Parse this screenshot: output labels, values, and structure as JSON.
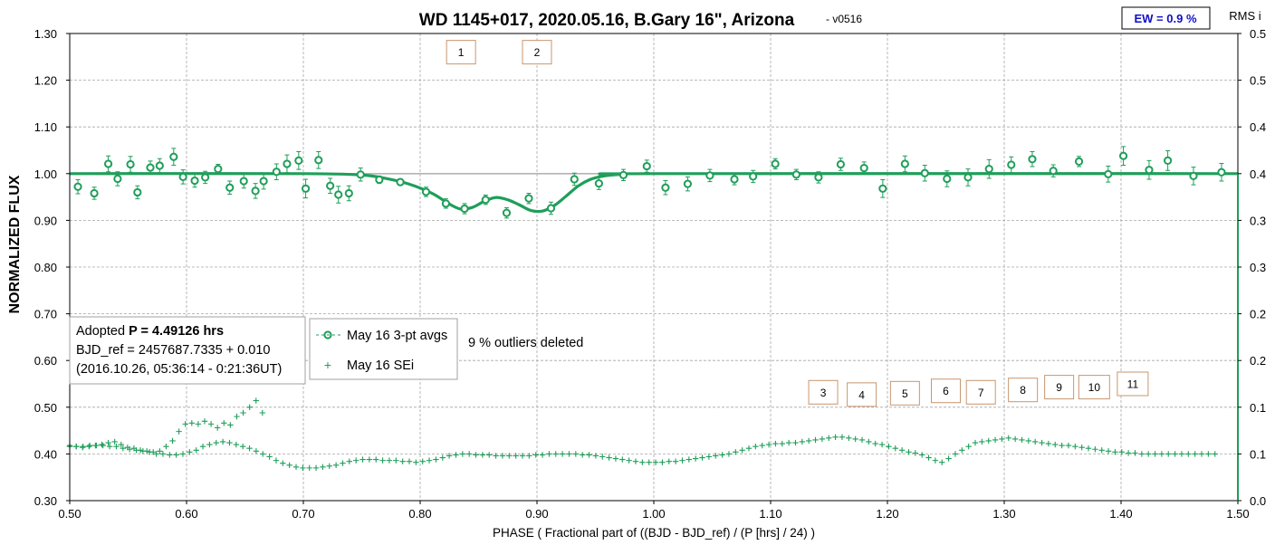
{
  "chart_data": {
    "type": "scatter",
    "title": "WD 1145+017, 2020.05.16, B.Gary 16\", Arizona",
    "subtitle": "-  v0516",
    "xlabel": "PHASE ( Fractional part of ((BJD - BJD_ref) / (P [hrs] / 24) )",
    "ylabel": "NORMALIZED FLUX",
    "y2label": "RMS i",
    "xlim": [
      0.5,
      1.5
    ],
    "ylim": [
      0.3,
      1.3
    ],
    "y2lim": [
      0.0,
      0.5
    ],
    "x_ticks": [
      "0.50",
      "0.60",
      "0.70",
      "0.80",
      "0.90",
      "1.00",
      "1.10",
      "1.20",
      "1.30",
      "1.40",
      "1.50"
    ],
    "y_ticks": [
      "0.30",
      "0.40",
      "0.50",
      "0.60",
      "0.70",
      "0.80",
      "0.90",
      "1.00",
      "1.10",
      "1.20",
      "1.30"
    ],
    "y2_ticks": [
      "0.0",
      "0.1",
      "0.1",
      "0.2",
      "0.2",
      "0.3",
      "0.3",
      "0.4",
      "0.4",
      "0.5",
      "0.5"
    ],
    "grid": true,
    "ew_label": "EW = 0.9 %",
    "info_box": {
      "line1_prefix": "Adopted ",
      "line1_bold": "P = 4.49126 hrs",
      "line2": "BJD_ref = 2457687.7335 + 0.010",
      "line3": "(2016.10.26, 05:36:14 - 0:21:36UT)"
    },
    "legend": {
      "placement": "center-left",
      "entries": [
        "May 16 3-pt avgs",
        "May 16 SEi"
      ]
    },
    "note": "9 % outliers deleted",
    "colors": {
      "series": "#1f9e5a",
      "reference": "#b4b4b4",
      "box_border": "#c8966e",
      "ew": "#1010c8"
    },
    "markers": [
      {
        "label": "1",
        "x": 0.835,
        "y": 1.26
      },
      {
        "label": "2",
        "x": 0.9,
        "y": 1.26
      },
      {
        "label": "3",
        "x": 1.145,
        "y": 0.532
      },
      {
        "label": "4",
        "x": 1.178,
        "y": 0.527
      },
      {
        "label": "5",
        "x": 1.215,
        "y": 0.53
      },
      {
        "label": "6",
        "x": 1.25,
        "y": 0.535
      },
      {
        "label": "7",
        "x": 1.28,
        "y": 0.532
      },
      {
        "label": "8",
        "x": 1.316,
        "y": 0.537
      },
      {
        "label": "9",
        "x": 1.347,
        "y": 0.543
      },
      {
        "label": "10",
        "x": 1.377,
        "y": 0.543
      },
      {
        "label": "11",
        "x": 1.41,
        "y": 0.55
      }
    ],
    "series": [
      {
        "name": "May 16 3-pt avgs",
        "style": "open-circle-errorbar",
        "points": [
          [
            0.507,
            0.972,
            0.015
          ],
          [
            0.521,
            0.958,
            0.013
          ],
          [
            0.533,
            1.021,
            0.017
          ],
          [
            0.541,
            0.989,
            0.015
          ],
          [
            0.552,
            1.02,
            0.017
          ],
          [
            0.558,
            0.96,
            0.014
          ],
          [
            0.569,
            1.013,
            0.014
          ],
          [
            0.577,
            1.017,
            0.015
          ],
          [
            0.589,
            1.036,
            0.018
          ],
          [
            0.597,
            0.993,
            0.015
          ],
          [
            0.607,
            0.985,
            0.014
          ],
          [
            0.616,
            0.992,
            0.013
          ],
          [
            0.627,
            1.01,
            0.01
          ],
          [
            0.637,
            0.97,
            0.014
          ],
          [
            0.649,
            0.984,
            0.015
          ],
          [
            0.659,
            0.963,
            0.016
          ],
          [
            0.666,
            0.984,
            0.017
          ],
          [
            0.677,
            1.004,
            0.017
          ],
          [
            0.686,
            1.021,
            0.019
          ],
          [
            0.696,
            1.028,
            0.019
          ],
          [
            0.702,
            0.968,
            0.02
          ],
          [
            0.713,
            1.029,
            0.018
          ],
          [
            0.723,
            0.974,
            0.016
          ],
          [
            0.73,
            0.955,
            0.018
          ],
          [
            0.739,
            0.958,
            0.016
          ],
          [
            0.749,
            0.998,
            0.014
          ],
          [
            0.765,
            0.987,
            0.008
          ],
          [
            0.783,
            0.982,
            0.007
          ],
          [
            0.805,
            0.961,
            0.01
          ],
          [
            0.822,
            0.936,
            0.01
          ],
          [
            0.838,
            0.925,
            0.011
          ],
          [
            0.856,
            0.944,
            0.01
          ],
          [
            0.874,
            0.916,
            0.011
          ],
          [
            0.893,
            0.947,
            0.011
          ],
          [
            0.912,
            0.926,
            0.013
          ],
          [
            0.932,
            0.988,
            0.013
          ],
          [
            0.953,
            0.979,
            0.013
          ],
          [
            0.974,
            0.997,
            0.012
          ],
          [
            0.994,
            1.016,
            0.013
          ],
          [
            1.01,
            0.97,
            0.015
          ],
          [
            1.029,
            0.978,
            0.015
          ],
          [
            1.048,
            0.996,
            0.013
          ],
          [
            1.069,
            0.988,
            0.012
          ],
          [
            1.085,
            0.994,
            0.013
          ],
          [
            1.104,
            1.021,
            0.011
          ],
          [
            1.122,
            0.998,
            0.011
          ],
          [
            1.141,
            0.992,
            0.012
          ],
          [
            1.16,
            1.02,
            0.013
          ],
          [
            1.18,
            1.012,
            0.013
          ],
          [
            1.196,
            0.968,
            0.019
          ],
          [
            1.215,
            1.021,
            0.017
          ],
          [
            1.232,
            1.001,
            0.017
          ],
          [
            1.251,
            0.989,
            0.017
          ],
          [
            1.269,
            0.992,
            0.018
          ],
          [
            1.287,
            1.01,
            0.02
          ],
          [
            1.306,
            1.019,
            0.017
          ],
          [
            1.324,
            1.031,
            0.016
          ],
          [
            1.342,
            1.006,
            0.013
          ],
          [
            1.364,
            1.026,
            0.011
          ],
          [
            1.389,
            0.999,
            0.017
          ],
          [
            1.402,
            1.038,
            0.02
          ],
          [
            1.424,
            1.008,
            0.02
          ],
          [
            1.44,
            1.028,
            0.021
          ],
          [
            1.462,
            0.995,
            0.019
          ],
          [
            1.486,
            1.003,
            0.019
          ]
        ]
      },
      {
        "name": "Model",
        "style": "line",
        "points": [
          [
            0.5,
            1.0
          ],
          [
            0.7,
            1.0
          ],
          [
            0.75,
            0.997
          ],
          [
            0.77,
            0.99
          ],
          [
            0.79,
            0.978
          ],
          [
            0.81,
            0.958
          ],
          [
            0.825,
            0.935
          ],
          [
            0.835,
            0.924
          ],
          [
            0.845,
            0.928
          ],
          [
            0.855,
            0.941
          ],
          [
            0.865,
            0.949
          ],
          [
            0.875,
            0.944
          ],
          [
            0.885,
            0.933
          ],
          [
            0.895,
            0.921
          ],
          [
            0.905,
            0.92
          ],
          [
            0.915,
            0.932
          ],
          [
            0.925,
            0.952
          ],
          [
            0.935,
            0.973
          ],
          [
            0.945,
            0.987
          ],
          [
            0.955,
            0.994
          ],
          [
            0.97,
            0.998
          ],
          [
            1.0,
            1.0
          ],
          [
            1.5,
            1.0
          ]
        ]
      },
      {
        "name": "May 16 SEi",
        "style": "plus",
        "axis": "right",
        "description": "RMS residual per point (right axis)",
        "x_start": 0.5,
        "x_step": 0.0055,
        "rms_upper": [
          0.059,
          0.058,
          0.057,
          0.058,
          0.059,
          0.06,
          0.062,
          0.063,
          0.06,
          0.057,
          0.056,
          0.054,
          0.053,
          0.052,
          0.053,
          0.058,
          0.064,
          0.074,
          0.082,
          0.083,
          0.082,
          0.085,
          0.082,
          0.078,
          0.083,
          0.081,
          0.09,
          0.094,
          0.1,
          0.107,
          0.094
        ],
        "x_start2": 0.5,
        "x_step2": 0.0057,
        "rms_lower": [
          0.058,
          0.058,
          0.058,
          0.059,
          0.059,
          0.059,
          0.058,
          0.058,
          0.056,
          0.055,
          0.054,
          0.053,
          0.052,
          0.05,
          0.05,
          0.049,
          0.049,
          0.05,
          0.052,
          0.054,
          0.058,
          0.06,
          0.062,
          0.063,
          0.062,
          0.06,
          0.058,
          0.056,
          0.053,
          0.05,
          0.047,
          0.043,
          0.04,
          0.038,
          0.036,
          0.035,
          0.035,
          0.035,
          0.036,
          0.037,
          0.038,
          0.04,
          0.042,
          0.043,
          0.044,
          0.044,
          0.044,
          0.043,
          0.043,
          0.043,
          0.042,
          0.042,
          0.041,
          0.042,
          0.043,
          0.044,
          0.046,
          0.048,
          0.049,
          0.05,
          0.05,
          0.049,
          0.049,
          0.049,
          0.048,
          0.048,
          0.048,
          0.048,
          0.048,
          0.048,
          0.049,
          0.049,
          0.05,
          0.05,
          0.05,
          0.05,
          0.05,
          0.049,
          0.049,
          0.048,
          0.047,
          0.046,
          0.045,
          0.044,
          0.043,
          0.042,
          0.041,
          0.041,
          0.041,
          0.041,
          0.042,
          0.042,
          0.043,
          0.044,
          0.045,
          0.046,
          0.047,
          0.048,
          0.049,
          0.05,
          0.052,
          0.054,
          0.056,
          0.058,
          0.059,
          0.06,
          0.061,
          0.061,
          0.062,
          0.062,
          0.063,
          0.064,
          0.065,
          0.066,
          0.067,
          0.068,
          0.068,
          0.067,
          0.066,
          0.065,
          0.063,
          0.061,
          0.06,
          0.058,
          0.056,
          0.054,
          0.052,
          0.051,
          0.049,
          0.046,
          0.043,
          0.041,
          0.045,
          0.05,
          0.054,
          0.058,
          0.062,
          0.063,
          0.064,
          0.065,
          0.066,
          0.067,
          0.066,
          0.065,
          0.064,
          0.063,
          0.062,
          0.061,
          0.06,
          0.059,
          0.059,
          0.058,
          0.057,
          0.056,
          0.055,
          0.054,
          0.053,
          0.052,
          0.052,
          0.051,
          0.051,
          0.05,
          0.05,
          0.05,
          0.05,
          0.05,
          0.05,
          0.05,
          0.05,
          0.05,
          0.05,
          0.05,
          0.05
        ]
      }
    ]
  }
}
